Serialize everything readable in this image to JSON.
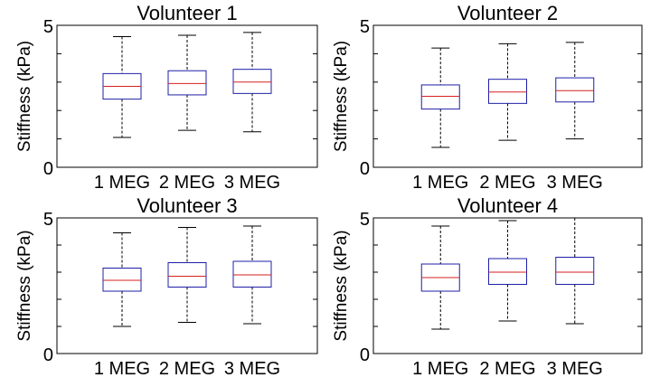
{
  "figure": {
    "background": "#ffffff"
  },
  "colors": {
    "box": "#1f1fa8",
    "median": "#d62020",
    "whisker": "#000000",
    "axis": "#000000"
  },
  "chart_data": [
    {
      "type": "box",
      "title": "Volunteer 1",
      "ylabel": "Stiffness (kPa)",
      "xlabel": "",
      "ylim": [
        0,
        5
      ],
      "yticks": [
        "0",
        "5"
      ],
      "categories": [
        "1 MEG",
        "2 MEG",
        "3 MEG"
      ],
      "boxes": [
        {
          "whisker_low": 1.05,
          "q1": 2.4,
          "median": 2.85,
          "q3": 3.3,
          "whisker_high": 4.6
        },
        {
          "whisker_low": 1.3,
          "q1": 2.55,
          "median": 2.95,
          "q3": 3.4,
          "whisker_high": 4.65
        },
        {
          "whisker_low": 1.25,
          "q1": 2.6,
          "median": 3.0,
          "q3": 3.45,
          "whisker_high": 4.75
        }
      ]
    },
    {
      "type": "box",
      "title": "Volunteer 2",
      "ylabel": "Stiffness (kPa)",
      "xlabel": "",
      "ylim": [
        0,
        5
      ],
      "yticks": [
        "0",
        "5"
      ],
      "categories": [
        "1 MEG",
        "2 MEG",
        "3 MEG"
      ],
      "boxes": [
        {
          "whisker_low": 0.7,
          "q1": 2.05,
          "median": 2.5,
          "q3": 2.9,
          "whisker_high": 4.2
        },
        {
          "whisker_low": 0.95,
          "q1": 2.25,
          "median": 2.65,
          "q3": 3.1,
          "whisker_high": 4.35
        },
        {
          "whisker_low": 1.0,
          "q1": 2.3,
          "median": 2.7,
          "q3": 3.15,
          "whisker_high": 4.4
        }
      ]
    },
    {
      "type": "box",
      "title": "Volunteer 3",
      "ylabel": "Stiffness (kPa)",
      "xlabel": "",
      "ylim": [
        0,
        5
      ],
      "yticks": [
        "0",
        "5"
      ],
      "categories": [
        "1 MEG",
        "2 MEG",
        "3 MEG"
      ],
      "boxes": [
        {
          "whisker_low": 1.0,
          "q1": 2.3,
          "median": 2.7,
          "q3": 3.15,
          "whisker_high": 4.45
        },
        {
          "whisker_low": 1.15,
          "q1": 2.45,
          "median": 2.85,
          "q3": 3.35,
          "whisker_high": 4.65
        },
        {
          "whisker_low": 1.1,
          "q1": 2.45,
          "median": 2.9,
          "q3": 3.4,
          "whisker_high": 4.7
        }
      ]
    },
    {
      "type": "box",
      "title": "Volunteer 4",
      "ylabel": "Stiffness (kPa)",
      "xlabel": "",
      "ylim": [
        0,
        5
      ],
      "yticks": [
        "0",
        "5"
      ],
      "categories": [
        "1 MEG",
        "2 MEG",
        "3 MEG"
      ],
      "boxes": [
        {
          "whisker_low": 0.9,
          "q1": 2.3,
          "median": 2.8,
          "q3": 3.3,
          "whisker_high": 4.7
        },
        {
          "whisker_low": 1.2,
          "q1": 2.55,
          "median": 3.0,
          "q3": 3.5,
          "whisker_high": 4.9
        },
        {
          "whisker_low": 1.1,
          "q1": 2.55,
          "median": 3.0,
          "q3": 3.55,
          "whisker_high": 5.0
        }
      ]
    }
  ]
}
